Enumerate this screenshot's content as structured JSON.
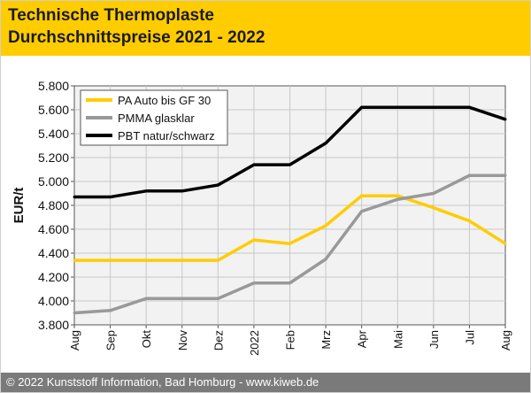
{
  "header": {
    "title_line1": "Technische Thermoplaste",
    "title_line2": "Durchschnittspreise 2021 - 2022"
  },
  "footer": {
    "text": "© 2022 Kunststoff Information, Bad Homburg - www.kiweb.de"
  },
  "colors": {
    "header_bg": "#ffcc00",
    "footer_bg": "#7a7a7a",
    "plot_bg": "#f2f2f2"
  },
  "chart_data": {
    "type": "line",
    "title": "",
    "xlabel": "",
    "ylabel": "EUR/t",
    "categories": [
      "Aug",
      "Sep",
      "Okt",
      "Nov",
      "Dez",
      "2022",
      "Feb",
      "Mrz",
      "Apr",
      "Mai",
      "Jun",
      "Jul",
      "Aug"
    ],
    "ylim": [
      3800,
      5800
    ],
    "yticks": [
      3800,
      4000,
      4200,
      4400,
      4600,
      4800,
      5000,
      5200,
      5400,
      5600,
      5800
    ],
    "ytick_labels": [
      "3.800",
      "4.000",
      "4.200",
      "4.400",
      "4.600",
      "4.800",
      "5.000",
      "5.200",
      "5.400",
      "5.600",
      "5.800"
    ],
    "grid": true,
    "legend_position": "top-left",
    "series": [
      {
        "name": "PA Auto bis GF 30",
        "color": "#ffcc00",
        "values": [
          4340,
          4340,
          4340,
          4340,
          4340,
          4510,
          4480,
          4630,
          4880,
          4880,
          4780,
          4670,
          4480
        ]
      },
      {
        "name": "PMMA glasklar",
        "color": "#999999",
        "values": [
          3900,
          3920,
          4020,
          4020,
          4020,
          4150,
          4150,
          4350,
          4750,
          4850,
          4900,
          5050,
          5050
        ]
      },
      {
        "name": "PBT natur/schwarz",
        "color": "#000000",
        "values": [
          4870,
          4870,
          4920,
          4920,
          4970,
          5140,
          5140,
          5320,
          5620,
          5620,
          5620,
          5620,
          5520
        ]
      }
    ]
  }
}
